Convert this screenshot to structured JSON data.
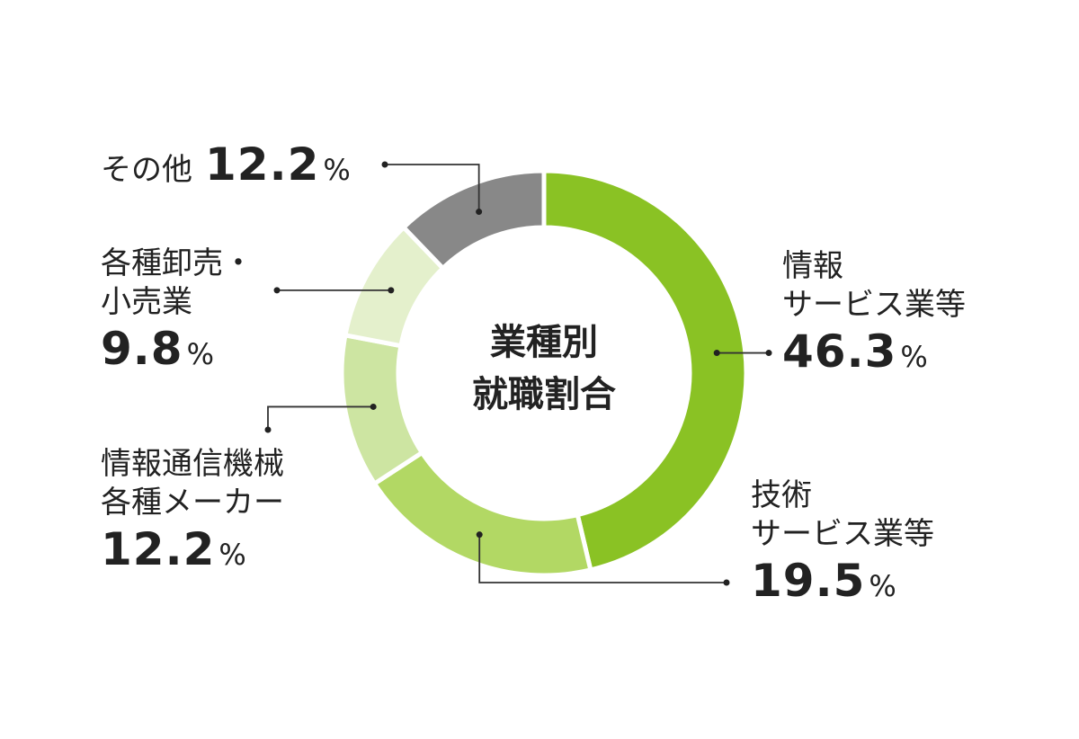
{
  "chart_data": {
    "type": "pie",
    "center_label": [
      "業種別",
      "就職割合"
    ],
    "unit": "%",
    "slices": [
      {
        "label": [
          "情報",
          "サービス業等"
        ],
        "value": 46.3,
        "color": "#8ac224"
      },
      {
        "label": [
          "技術",
          "サービス業等"
        ],
        "value": 19.5,
        "color": "#b2d864"
      },
      {
        "label": [
          "情報通信機械",
          "各種メーカー"
        ],
        "value": 12.2,
        "color": "#cde5a2"
      },
      {
        "label": [
          "各種卸売・",
          "小売業"
        ],
        "value": 9.8,
        "color": "#e4f0cc"
      },
      {
        "label": [
          "その他"
        ],
        "value": 12.2,
        "color": "#888888"
      }
    ]
  },
  "labels": {
    "s0": {
      "line1": "情報",
      "line2": "サービス業等",
      "value": "46.3",
      "pct": "%"
    },
    "s1": {
      "line1": "技術",
      "line2": "サービス業等",
      "value": "19.5",
      "pct": "%"
    },
    "s2": {
      "line1": "情報通信機械",
      "line2": "各種メーカー",
      "value": "12.2",
      "pct": "%"
    },
    "s3": {
      "line1": "各種卸売・",
      "line2": "小売業",
      "value": "9.8",
      "pct": "%"
    },
    "s4": {
      "line1": "その他",
      "value": "12.2",
      "pct": "%"
    }
  }
}
